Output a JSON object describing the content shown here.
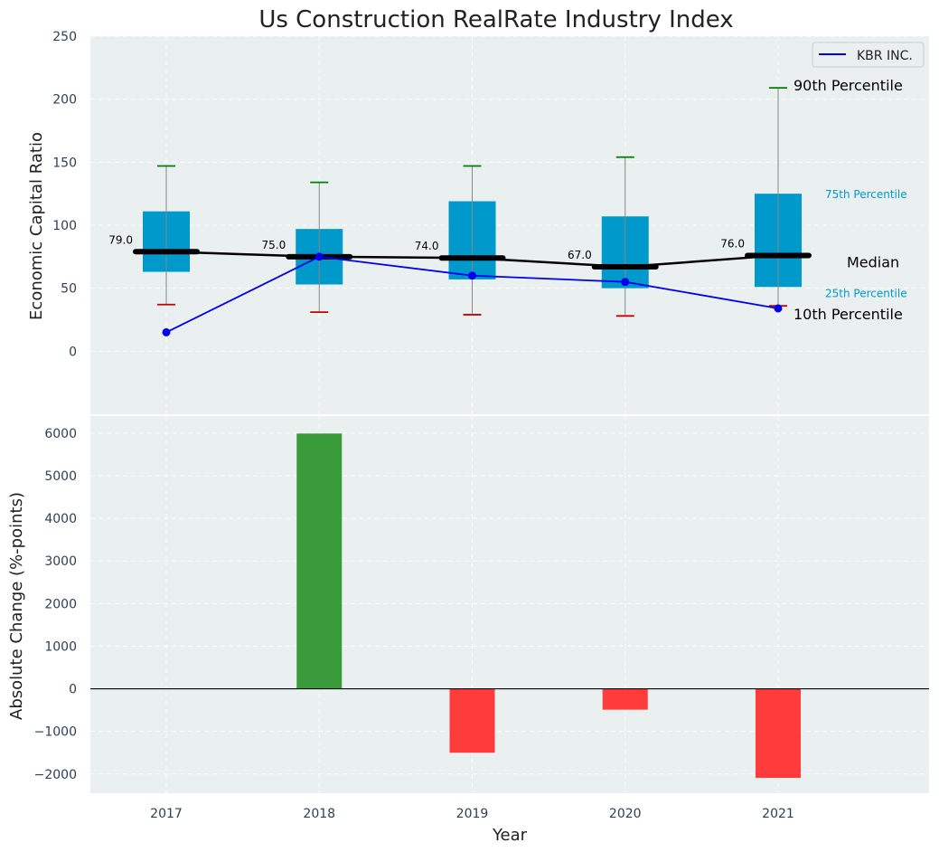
{
  "colors": {
    "panel_bg": "#eaeff0",
    "box_fill": "#0099cc",
    "whisker": "#888888",
    "p90_cap": "#008000",
    "p10_cap": "#cc0000",
    "median_line": "#000000",
    "company_line": "#0000ee",
    "bar_positive": "#3a9b3a",
    "bar_negative": "#ff3b3b",
    "annotation_blue": "#0099cc"
  },
  "chart_data": [
    {
      "type": "box",
      "title": "Us Construction RealRate Industry Index",
      "ylabel": "Economic Capital Ratio",
      "ylim": [
        -50,
        250
      ],
      "yticks": [
        0,
        50,
        100,
        150,
        200,
        250
      ],
      "categories": [
        "2017",
        "2018",
        "2019",
        "2020",
        "2021"
      ],
      "p10": [
        37,
        31,
        29,
        28,
        36
      ],
      "p25": [
        63,
        53,
        57,
        50,
        51
      ],
      "median": [
        79,
        75,
        74,
        67,
        76
      ],
      "p75": [
        111,
        97,
        119,
        107,
        125
      ],
      "p90": [
        147,
        134,
        147,
        154,
        209
      ],
      "median_labels": [
        "79.0",
        "75.0",
        "74.0",
        "67.0",
        "76.0"
      ],
      "company": {
        "name": "KBR INC.",
        "values": [
          15,
          75,
          60,
          55,
          34
        ]
      },
      "legend": {
        "label": "KBR INC.",
        "position": "top-right"
      },
      "annotations": {
        "p90": "90th Percentile",
        "p75": "75th Percentile",
        "median": "Median",
        "p25": "25th Percentile",
        "p10": "10th Percentile"
      }
    },
    {
      "type": "bar",
      "ylabel": "Absolute Change (%-points)",
      "xlabel": "Year",
      "ylim": [
        -2450,
        6400
      ],
      "yticks": [
        -2000,
        -1000,
        0,
        1000,
        2000,
        3000,
        4000,
        5000,
        6000
      ],
      "ytick_labels": [
        "−2000",
        "−1000",
        "0",
        "1000",
        "2000",
        "3000",
        "4000",
        "5000",
        "6000"
      ],
      "categories": [
        "2017",
        "2018",
        "2019",
        "2020",
        "2021"
      ],
      "values": [
        0,
        5990,
        -1500,
        -490,
        -2090
      ]
    }
  ]
}
